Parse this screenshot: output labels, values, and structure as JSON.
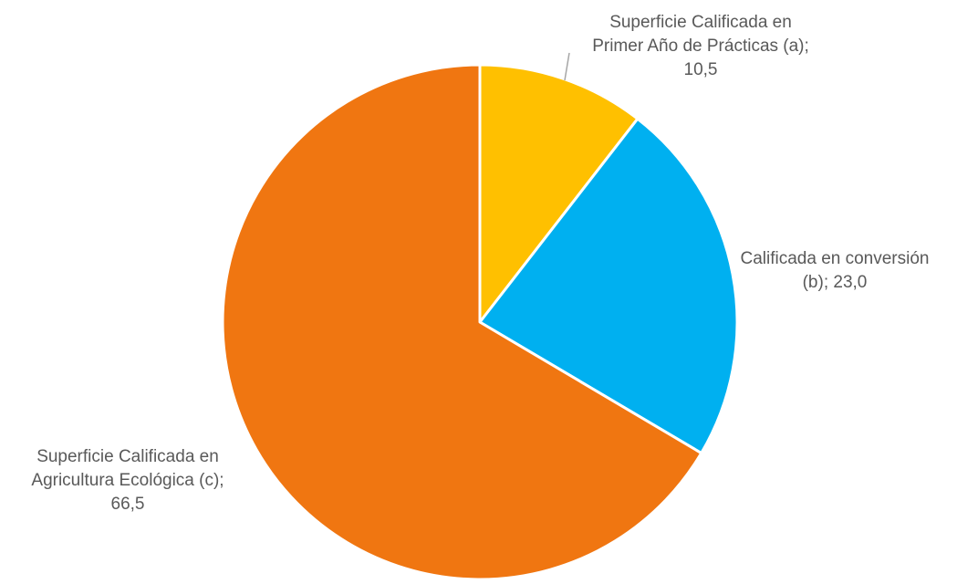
{
  "chart_data": {
    "type": "pie",
    "title": "",
    "slices": [
      {
        "label_lines": [
          "Superficie Calificada en",
          "Primer Año de Prácticas (a);",
          "10,5"
        ],
        "value": 10.5,
        "color": "#FFC000"
      },
      {
        "label_lines": [
          "Calificada en conversión",
          "(b); 23,0"
        ],
        "value": 23.0,
        "color": "#00B0F0"
      },
      {
        "label_lines": [
          "Superficie Calificada en",
          "Agricultura Ecológica (c);",
          "66,5"
        ],
        "value": 66.5,
        "color": "#F07611"
      }
    ],
    "start_angle_deg": 0,
    "direction": "clockwise",
    "slice_border_color": "#ffffff",
    "leader_line_color": "#A6A6A6"
  }
}
